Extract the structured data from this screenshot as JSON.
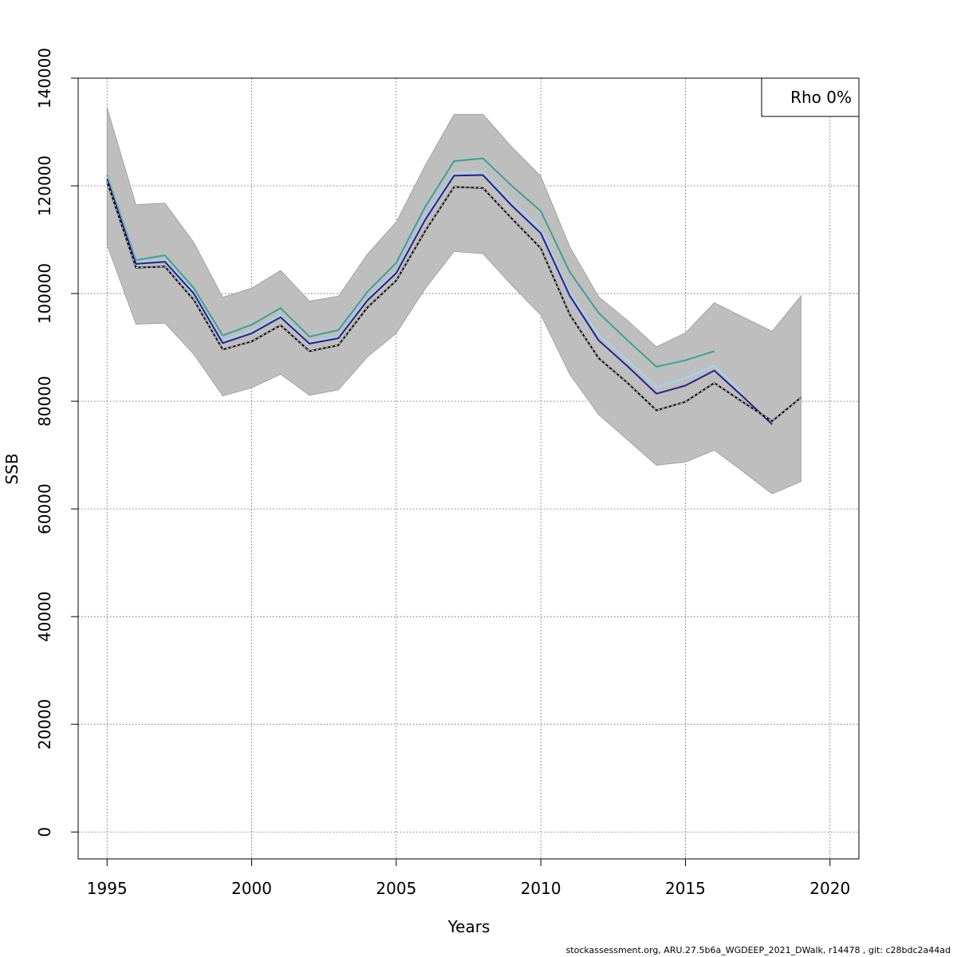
{
  "chart_data": {
    "type": "line",
    "xlabel": "Years",
    "ylabel": "SSB",
    "xlim": [
      1994,
      2021
    ],
    "ylim": [
      -5000,
      140000
    ],
    "x_ticks": [
      1995,
      2000,
      2005,
      2010,
      2015,
      2020
    ],
    "y_ticks": [
      0,
      20000,
      40000,
      60000,
      80000,
      100000,
      120000,
      140000
    ],
    "grid": true,
    "legend": {
      "position": "top-right",
      "text": "Rho 0%"
    },
    "band": {
      "x": [
        1995,
        1996,
        1997,
        1998,
        1999,
        2000,
        2001,
        2002,
        2003,
        2004,
        2005,
        2006,
        2007,
        2008,
        2009,
        2010,
        2011,
        2012,
        2013,
        2014,
        2015,
        2016,
        2017,
        2018,
        2019
      ],
      "upper": [
        134500,
        116500,
        116800,
        109500,
        99300,
        101000,
        104300,
        98600,
        99500,
        107300,
        113300,
        123800,
        133300,
        133300,
        127200,
        121800,
        108700,
        99400,
        95000,
        90100,
        92700,
        98300,
        95600,
        93000,
        99600
      ],
      "lower": [
        109000,
        94300,
        94500,
        88700,
        81000,
        82500,
        85000,
        81100,
        82100,
        88200,
        92600,
        100900,
        107800,
        107400,
        101500,
        96000,
        85000,
        77500,
        72800,
        68100,
        68700,
        70900,
        66900,
        62800,
        65100
      ]
    },
    "series": [
      {
        "x": [
          1995,
          1996,
          1997,
          1998,
          1999,
          2000,
          2001,
          2002,
          2003,
          2004,
          2005,
          2006,
          2007,
          2008,
          2009,
          2010,
          2011,
          2012,
          2013,
          2014,
          2015,
          2016
        ],
        "values": [
          122000,
          106200,
          107100,
          101000,
          92200,
          94200,
          97300,
          92000,
          93200,
          100300,
          105700,
          116100,
          124600,
          125100,
          120000,
          115300,
          104000,
          96400,
          91300,
          86400,
          87600,
          89300
        ]
      },
      {
        "x": [
          1995,
          1996,
          1997,
          1998,
          1999,
          2000,
          2001,
          2002,
          2003,
          2004,
          2005,
          2006,
          2007,
          2008,
          2009,
          2010,
          2011,
          2012,
          2013,
          2014,
          2015,
          2016,
          2017
        ],
        "values": [
          121700,
          105800,
          106200,
          100400,
          91200,
          93000,
          95900,
          91000,
          92000,
          99000,
          104200,
          114200,
          122400,
          122600,
          117100,
          111900,
          100200,
          92300,
          87600,
          82600,
          84300,
          86600,
          81300
        ]
      },
      {
        "x": [
          1995,
          1996,
          1997,
          1998,
          1999,
          2000,
          2001,
          2002,
          2003,
          2004,
          2005,
          2006,
          2007,
          2008,
          2009,
          2010,
          2011,
          2012,
          2013,
          2014,
          2015,
          2016,
          2017,
          2018
        ],
        "values": [
          121300,
          105500,
          105900,
          100000,
          90800,
          92600,
          95600,
          90700,
          91700,
          98700,
          103800,
          113700,
          121900,
          122000,
          116300,
          111200,
          99600,
          91300,
          86500,
          81400,
          82900,
          85700,
          80800,
          75700
        ]
      },
      {
        "x": [
          1995,
          1996,
          1997,
          1998,
          1999,
          2000,
          2001,
          2002,
          2003,
          2004,
          2005,
          2006,
          2007,
          2008,
          2009,
          2010,
          2011,
          2012,
          2013,
          2014,
          2015,
          2016,
          2017,
          2018,
          2019
        ],
        "values": [
          120800,
          104800,
          105000,
          98800,
          89600,
          91100,
          94100,
          89300,
          90400,
          97400,
          102400,
          111600,
          119800,
          119600,
          113900,
          108400,
          96100,
          88000,
          83400,
          78300,
          79900,
          83400,
          79800,
          76300,
          80700
        ]
      }
    ],
    "colors": {
      "band": "#bebebe",
      "band_edge": "#9a9a9a",
      "series": [
        "#3aa293",
        "#9fd6f2",
        "#2a1f8f",
        "#000000"
      ],
      "grid": "#555555"
    }
  },
  "footer": "stockassessment.org, ARU.27.5b6a_WGDEEP_2021_DWalk, r14478 , git: c28bdc2a44ad"
}
